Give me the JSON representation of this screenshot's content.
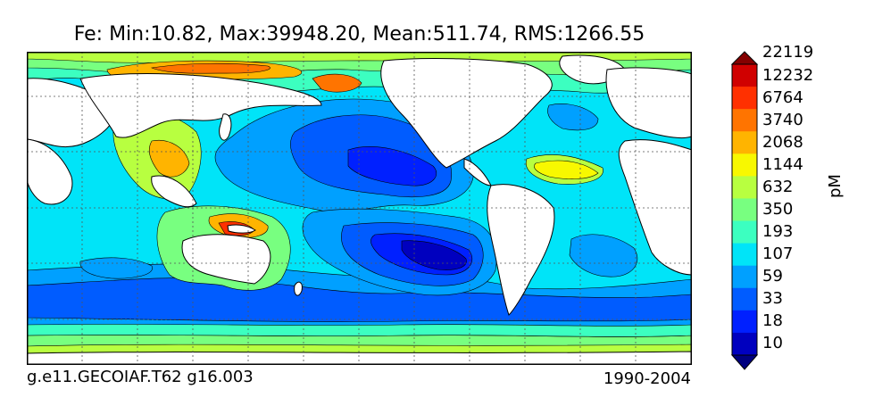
{
  "title": "Fe: Min:10.82, Max:39948.20, Mean:511.74, RMS:1266.55",
  "caption_left": "g.e11.GECOIAF.T62 g16.003",
  "caption_right": "1990-2004",
  "colorbar": {
    "unit": "pM",
    "levels": [
      "10",
      "18",
      "33",
      "59",
      "107",
      "193",
      "350",
      "632",
      "1144",
      "2068",
      "3740",
      "6764",
      "12232",
      "22119"
    ],
    "colors": [
      "#00007f",
      "#0000bf",
      "#0020ff",
      "#005cff",
      "#00a0ff",
      "#00e4f8",
      "#3cffc0",
      "#78ff80",
      "#b8ff40",
      "#f8f800",
      "#ffb400",
      "#ff7400",
      "#ff3000",
      "#d00000",
      "#840000"
    ]
  },
  "map": {
    "projection": "equirectangular",
    "longitude_center": "Pacific",
    "land_color": "#ffffff",
    "grid": "dotted"
  }
}
